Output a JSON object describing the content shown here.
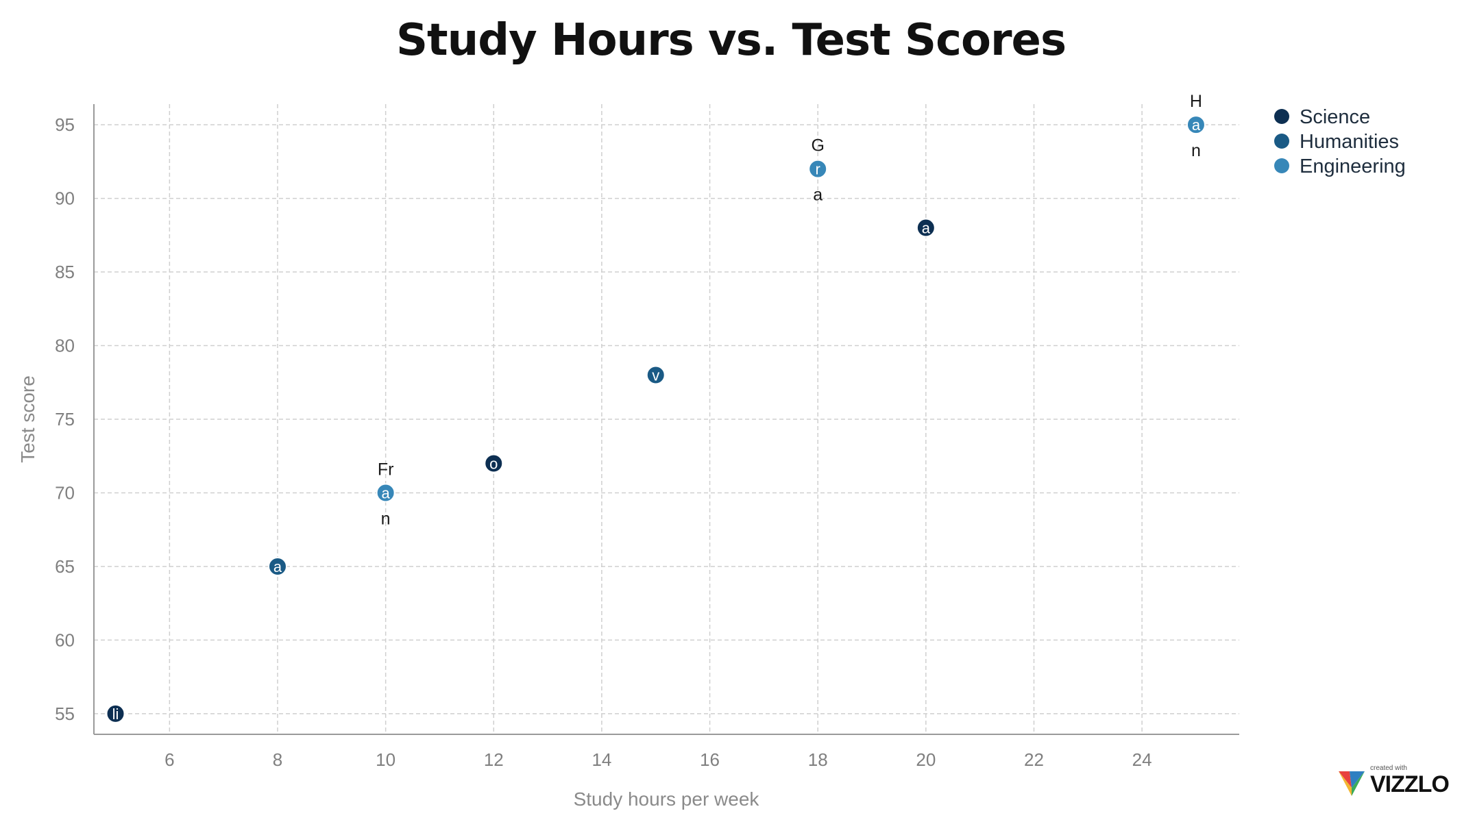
{
  "chart_data": {
    "type": "scatter",
    "title": "Study Hours vs. Test Scores",
    "xlabel": "Study hours per week",
    "ylabel": "Test score",
    "xlim": [
      4.6,
      25.8
    ],
    "ylim": [
      53.6,
      96.4
    ],
    "xticks": [
      6,
      8,
      10,
      12,
      14,
      16,
      18,
      20,
      22,
      24
    ],
    "yticks": [
      55,
      60,
      65,
      70,
      75,
      80,
      85,
      90,
      95
    ],
    "grid": true,
    "legend_position": "top-right",
    "series": [
      {
        "name": "Science",
        "color": "#0d2f52"
      },
      {
        "name": "Humanities",
        "color": "#1a5a85"
      },
      {
        "name": "Engineering",
        "color": "#3787b8"
      }
    ],
    "points": [
      {
        "x": 5,
        "y": 55,
        "series": "Science",
        "inner": "li",
        "above": "",
        "below": ""
      },
      {
        "x": 8,
        "y": 65,
        "series": "Humanities",
        "inner": "a",
        "above": "",
        "below": ""
      },
      {
        "x": 10,
        "y": 70,
        "series": "Engineering",
        "inner": "a",
        "above": "Fr",
        "below": "n"
      },
      {
        "x": 12,
        "y": 72,
        "series": "Science",
        "inner": "o",
        "above": "",
        "below": ""
      },
      {
        "x": 15,
        "y": 78,
        "series": "Humanities",
        "inner": "v",
        "above": "",
        "below": ""
      },
      {
        "x": 18,
        "y": 92,
        "series": "Engineering",
        "inner": "r",
        "above": "G",
        "below": "a"
      },
      {
        "x": 20,
        "y": 88,
        "series": "Science",
        "inner": "a",
        "above": "",
        "below": ""
      },
      {
        "x": 25,
        "y": 95,
        "series": "Engineering",
        "inner": "a",
        "above": "H",
        "below": "n"
      }
    ]
  },
  "branding": {
    "small_text": "created with",
    "brand_text": "VIZZLO"
  }
}
